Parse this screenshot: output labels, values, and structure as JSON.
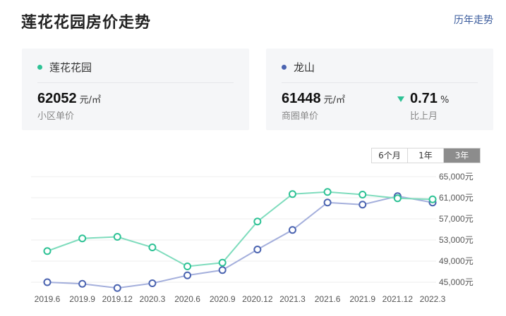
{
  "header": {
    "title": "莲花花园房价走势",
    "history_link": "历年走势"
  },
  "cards": {
    "community": {
      "name": "莲花花园",
      "dot_color": "#2ec295",
      "price": "62052",
      "unit": "元/㎡",
      "label": "小区单价"
    },
    "district": {
      "name": "龙山",
      "dot_color": "#4a63b0",
      "price": "61448",
      "unit": "元/㎡",
      "label": "商圈单价",
      "change": "0.71",
      "change_unit": "%",
      "change_label": "比上月",
      "change_direction": "down"
    }
  },
  "range_tabs": [
    {
      "label": "6个月",
      "active": false
    },
    {
      "label": "1年",
      "active": false
    },
    {
      "label": "3年",
      "active": true
    }
  ],
  "chart_data": {
    "type": "line",
    "title": "",
    "xlabel": "",
    "ylabel": "",
    "x_tick_labels": [
      "2019.6",
      "2019.9",
      "2019.12",
      "2020.3",
      "2020.6",
      "2020.9",
      "2020.12",
      "2021.3",
      "2021.6",
      "2021.9",
      "2021.12",
      "2022.3"
    ],
    "y_tick_labels": [
      "65,000元",
      "61,000元",
      "57,000元",
      "53,000元",
      "49,000元",
      "45,000元"
    ],
    "ylim": [
      43000,
      67000
    ],
    "grid": true,
    "series": [
      {
        "name": "莲花花园",
        "color": "#2ec295",
        "values": [
          50900,
          53300,
          53600,
          51600,
          48000,
          48700,
          56500,
          61700,
          62100,
          61600,
          60900,
          60700
        ]
      },
      {
        "name": "龙山",
        "color": "#4a63b0",
        "values": [
          45000,
          44700,
          43900,
          44800,
          46300,
          47300,
          51200,
          54900,
          60100,
          59700,
          61300,
          60100
        ]
      }
    ]
  }
}
